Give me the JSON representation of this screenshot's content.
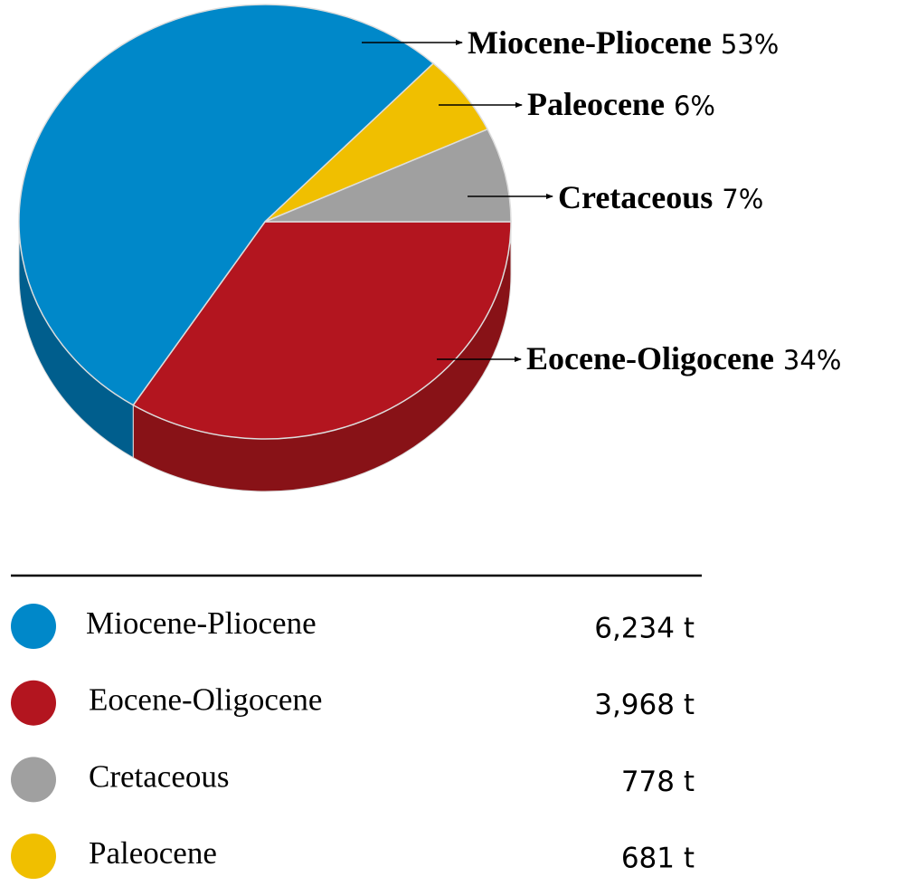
{
  "chart_data": {
    "type": "pie",
    "categories": [
      "Eocene-Oligocene",
      "Miocene-Pliocene",
      "Paleocene",
      "Cretaceous"
    ],
    "values": [
      34,
      53,
      6,
      7
    ],
    "value_labels": [
      "34%",
      "53%",
      "6%",
      "7%"
    ],
    "colors": [
      "#b3151f",
      "#0088c9",
      "#f0bf00",
      "#a0a0a0"
    ],
    "side_colors": [
      "#881217",
      "#005e8d",
      "#b08c00",
      "#707070"
    ]
  },
  "legend": {
    "rows": [
      {
        "name": "Miocene-Pliocene",
        "amount": "6,234 t"
      },
      {
        "name": "Eocene-Oligocene",
        "amount": "3,968 t"
      },
      {
        "name": "Cretaceous",
        "amount": "778 t"
      },
      {
        "name": "Paleocene",
        "amount": "681 t"
      }
    ]
  }
}
